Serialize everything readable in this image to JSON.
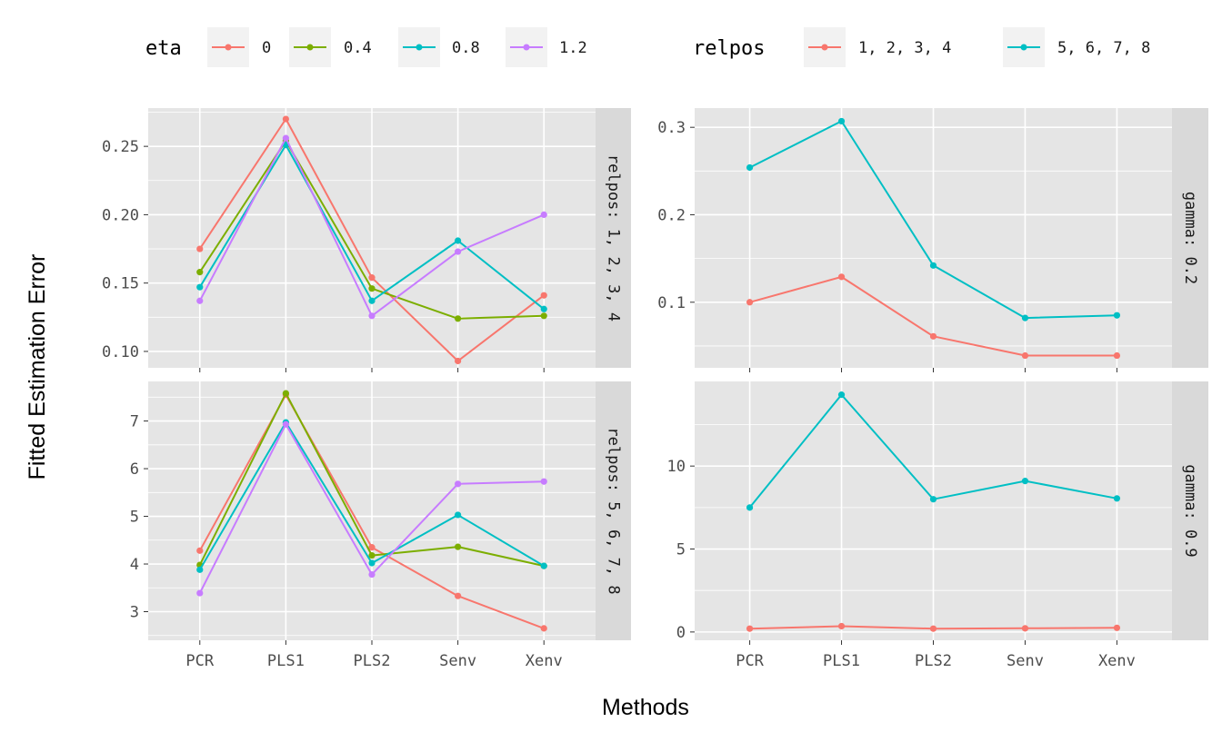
{
  "axis_titles": {
    "x": "Methods",
    "y": "Fitted Estimation Error"
  },
  "colors": {
    "panel_bg": "#E5E5E5",
    "strip_bg": "#D9D9D9",
    "grid": "#FFFFFF",
    "tick_text": "#4D4D4D"
  },
  "legends": [
    {
      "title": "eta",
      "items": [
        {
          "label": "0",
          "color": "#F8766D"
        },
        {
          "label": "0.4",
          "color": "#7CAE00"
        },
        {
          "label": "0.8",
          "color": "#00BFC4"
        },
        {
          "label": "1.2",
          "color": "#C77CFF"
        }
      ]
    },
    {
      "title": "relpos",
      "items": [
        {
          "label": "1, 2, 3, 4",
          "color": "#F8766D"
        },
        {
          "label": "5, 6, 7, 8",
          "color": "#00BFC4"
        }
      ]
    }
  ],
  "chart_data": [
    {
      "type": "line",
      "strip": "relpos: 1, 2, 3, 4",
      "categories": [
        "PCR",
        "PLS1",
        "PLS2",
        "Senv",
        "Xenv"
      ],
      "ylim": [
        0.088,
        0.278
      ],
      "yticks": [
        0.1,
        0.15,
        0.2,
        0.25
      ],
      "ytick_labels": [
        "0.10",
        "0.15",
        "0.20",
        "0.25"
      ],
      "series": [
        {
          "name": "0",
          "color": "#F8766D",
          "values": [
            0.175,
            0.27,
            0.154,
            0.093,
            0.141
          ]
        },
        {
          "name": "0.4",
          "color": "#7CAE00",
          "values": [
            0.158,
            0.254,
            0.146,
            0.124,
            0.126
          ]
        },
        {
          "name": "0.8",
          "color": "#00BFC4",
          "values": [
            0.147,
            0.251,
            0.137,
            0.181,
            0.131
          ]
        },
        {
          "name": "1.2",
          "color": "#C77CFF",
          "values": [
            0.137,
            0.256,
            0.126,
            0.173,
            0.2
          ]
        }
      ]
    },
    {
      "type": "line",
      "strip": "relpos: 5, 6, 7, 8",
      "categories": [
        "PCR",
        "PLS1",
        "PLS2",
        "Senv",
        "Xenv"
      ],
      "ylim": [
        2.4,
        7.83
      ],
      "yticks": [
        3,
        4,
        5,
        6,
        7
      ],
      "ytick_labels": [
        "3",
        "4",
        "5",
        "6",
        "7"
      ],
      "series": [
        {
          "name": "0",
          "color": "#F8766D",
          "values": [
            4.28,
            7.55,
            4.35,
            3.33,
            2.65
          ]
        },
        {
          "name": "0.4",
          "color": "#7CAE00",
          "values": [
            3.98,
            7.58,
            4.18,
            4.36,
            3.96
          ]
        },
        {
          "name": "0.8",
          "color": "#00BFC4",
          "values": [
            3.88,
            6.97,
            4.02,
            5.03,
            3.96
          ]
        },
        {
          "name": "1.2",
          "color": "#C77CFF",
          "values": [
            3.39,
            6.93,
            3.78,
            5.68,
            5.73
          ]
        }
      ]
    },
    {
      "type": "line",
      "strip": "gamma: 0.2",
      "categories": [
        "PCR",
        "PLS1",
        "PLS2",
        "Senv",
        "Xenv"
      ],
      "ylim": [
        0.025,
        0.322
      ],
      "yticks": [
        0.1,
        0.2,
        0.3
      ],
      "ytick_labels": [
        "0.1",
        "0.2",
        "0.3"
      ],
      "series": [
        {
          "name": "1, 2, 3, 4",
          "color": "#F8766D",
          "values": [
            0.1,
            0.129,
            0.061,
            0.039,
            0.039
          ]
        },
        {
          "name": "5, 6, 7, 8",
          "color": "#00BFC4",
          "values": [
            0.254,
            0.307,
            0.142,
            0.082,
            0.085
          ]
        }
      ]
    },
    {
      "type": "line",
      "strip": "gamma: 0.9",
      "categories": [
        "PCR",
        "PLS1",
        "PLS2",
        "Senv",
        "Xenv"
      ],
      "ylim": [
        -0.5,
        15.1
      ],
      "yticks": [
        0,
        5,
        10
      ],
      "ytick_labels": [
        "0",
        "5",
        "10"
      ],
      "series": [
        {
          "name": "1, 2, 3, 4",
          "color": "#F8766D",
          "values": [
            0.2,
            0.35,
            0.2,
            0.22,
            0.25
          ]
        },
        {
          "name": "5, 6, 7, 8",
          "color": "#00BFC4",
          "values": [
            7.5,
            14.3,
            8.0,
            9.1,
            8.05
          ]
        }
      ]
    }
  ]
}
